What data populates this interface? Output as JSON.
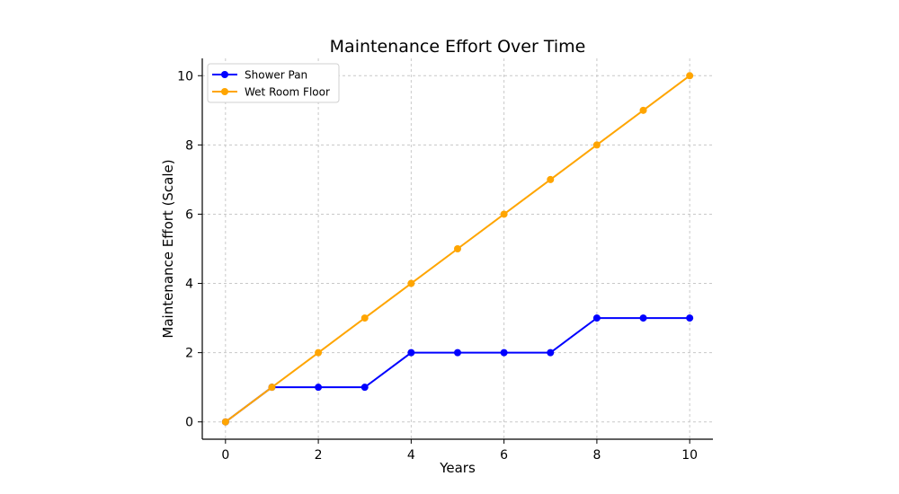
{
  "chart_data": {
    "type": "line",
    "title": "Maintenance Effort Over Time",
    "xlabel": "Years",
    "ylabel": "Maintenance Effort (Scale)",
    "x": [
      0,
      1,
      2,
      3,
      4,
      5,
      6,
      7,
      8,
      9,
      10
    ],
    "series": [
      {
        "name": "Shower Pan",
        "color": "#0000ff",
        "values": [
          0,
          1,
          1,
          1,
          2,
          2,
          2,
          2,
          3,
          3,
          3
        ]
      },
      {
        "name": "Wet Room Floor",
        "color": "#ffa500",
        "values": [
          0,
          1,
          2,
          3,
          4,
          5,
          6,
          7,
          8,
          9,
          10
        ]
      }
    ],
    "xticks": [
      0,
      2,
      4,
      6,
      8,
      10
    ],
    "yticks": [
      0,
      2,
      4,
      6,
      8,
      10
    ],
    "xlim": [
      -0.5,
      10.5
    ],
    "ylim": [
      -0.5,
      10.5
    ],
    "grid": true,
    "legend": "top-left",
    "markers": "circle"
  }
}
